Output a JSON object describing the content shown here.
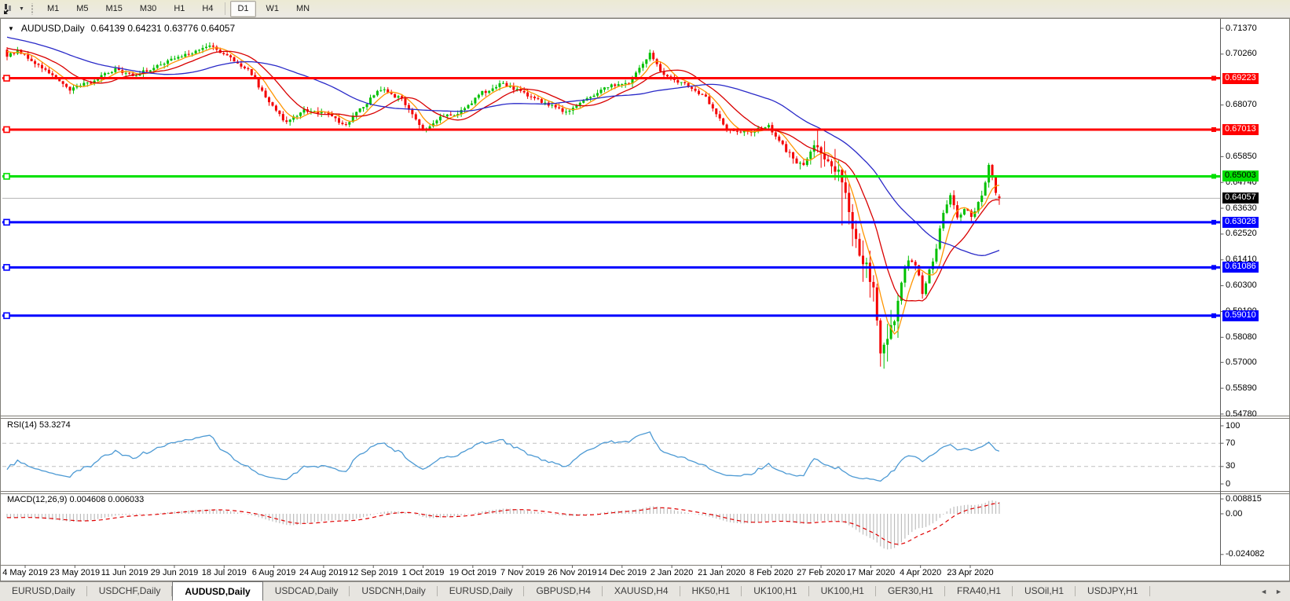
{
  "toolbar": {
    "timeframes": [
      {
        "label": "M1",
        "active": false
      },
      {
        "label": "M5",
        "active": false
      },
      {
        "label": "M15",
        "active": false
      },
      {
        "label": "M30",
        "active": false
      },
      {
        "label": "H1",
        "active": false
      },
      {
        "label": "H4",
        "active": false
      },
      {
        "label": "D1",
        "active": true
      },
      {
        "label": "W1",
        "active": false
      },
      {
        "label": "MN",
        "active": false
      }
    ]
  },
  "icons": {
    "collapse_indicator": "▼",
    "tools_dropdown_caret": "▼",
    "tab_scroll_left": "◄",
    "tab_scroll_right": "►"
  },
  "chart": {
    "title_symbol": "AUDUSD,Daily",
    "title_ohlc": "0.64139 0.64231 0.63776 0.64057",
    "price_axis_ticks": [
      "0.71370",
      "0.70260",
      "0.68070",
      "0.65850",
      "0.64740",
      "0.63630",
      "0.62520",
      "0.61410",
      "0.60300",
      "0.59190",
      "0.58080",
      "0.57000",
      "0.55890",
      "0.54780"
    ],
    "hlines": [
      {
        "label": "0.69223",
        "price": 0.69223,
        "color": "#ff0000",
        "text_color": "#ffffff"
      },
      {
        "label": "0.67013",
        "price": 0.67013,
        "color": "#ff0000",
        "text_color": "#ffffff"
      },
      {
        "label": "0.65003",
        "price": 0.65003,
        "color": "#00e000",
        "text_color": "#000000"
      },
      {
        "label": "0.63028",
        "price": 0.63028,
        "color": "#0000ff",
        "text_color": "#ffffff"
      },
      {
        "label": "0.61086",
        "price": 0.61086,
        "color": "#0000ff",
        "text_color": "#ffffff"
      },
      {
        "label": "0.59010",
        "price": 0.5901,
        "color": "#0000ff",
        "text_color": "#ffffff"
      }
    ],
    "current_price": {
      "label": "0.64057",
      "price": 0.64057,
      "color": "#000000",
      "text_color": "#ffffff"
    }
  },
  "rsi_panel": {
    "label": "RSI(14) 53.3274",
    "axis": [
      {
        "label": "100",
        "value": 100
      },
      {
        "label": "70",
        "value": 70
      },
      {
        "label": "30",
        "value": 30
      },
      {
        "label": "0",
        "value": 0
      }
    ],
    "dashed_levels": [
      70,
      30
    ]
  },
  "macd_panel": {
    "label": "MACD(12,26,9) 0.004608 0.006033",
    "axis": [
      {
        "label": "0.008815",
        "value": 0.008815
      },
      {
        "label": "0.00",
        "value": 0
      },
      {
        "label": "-0.024082",
        "value": -0.024082
      }
    ]
  },
  "time_axis": {
    "labels": [
      "4 May 2019",
      "23 May 2019",
      "11 Jun 2019",
      "29 Jun 2019",
      "18 Jul 2019",
      "6 Aug 2019",
      "24 Aug 2019",
      "12 Sep 2019",
      "1 Oct 2019",
      "19 Oct 2019",
      "7 Nov 2019",
      "26 Nov 2019",
      "14 Dec 2019",
      "2 Jan 2020",
      "21 Jan 2020",
      "8 Feb 2020",
      "27 Feb 2020",
      "17 Mar 2020",
      "4 Apr 2020",
      "23 Apr 2020"
    ]
  },
  "tabs": {
    "active_index": 2,
    "items": [
      "EURUSD,Daily",
      "USDCHF,Daily",
      "AUDUSD,Daily",
      "USDCAD,Daily",
      "USDCNH,Daily",
      "EURUSD,Daily",
      "GBPUSD,H4",
      "XAUUSD,H4",
      "HK50,H1",
      "UK100,H1",
      "UK100,H1",
      "GER30,H1",
      "FRA40,H1",
      "USOil,H1",
      "USDJPY,H1"
    ]
  },
  "chart_data": {
    "type": "candlestick",
    "symbol": "AUDUSD",
    "timeframe": "Daily",
    "last_candle": {
      "open": 0.64139,
      "high": 0.64231,
      "low": 0.63776,
      "close": 0.64057
    },
    "y_axis": {
      "min": 0.5478,
      "max": 0.7137
    },
    "x_range": {
      "start": "1 May 2019",
      "end": "6 May 2020",
      "bars": 285
    },
    "price_path_anchors": [
      [
        0,
        0.702
      ],
      [
        3,
        0.704
      ],
      [
        8,
        0.699
      ],
      [
        14,
        0.692
      ],
      [
        18,
        0.6875
      ],
      [
        24,
        0.6905
      ],
      [
        31,
        0.696
      ],
      [
        37,
        0.6935
      ],
      [
        45,
        0.699
      ],
      [
        53,
        0.7035
      ],
      [
        58,
        0.707
      ],
      [
        63,
        0.7015
      ],
      [
        69,
        0.696
      ],
      [
        75,
        0.6815
      ],
      [
        80,
        0.673
      ],
      [
        85,
        0.6785
      ],
      [
        91,
        0.677
      ],
      [
        97,
        0.672
      ],
      [
        101,
        0.679
      ],
      [
        107,
        0.6875
      ],
      [
        113,
        0.683
      ],
      [
        119,
        0.67
      ],
      [
        124,
        0.675
      ],
      [
        130,
        0.678
      ],
      [
        136,
        0.686
      ],
      [
        142,
        0.69
      ],
      [
        148,
        0.6855
      ],
      [
        154,
        0.681
      ],
      [
        160,
        0.678
      ],
      [
        166,
        0.6835
      ],
      [
        172,
        0.6885
      ],
      [
        178,
        0.6905
      ],
      [
        184,
        0.7025
      ],
      [
        188,
        0.6935
      ],
      [
        194,
        0.6895
      ],
      [
        200,
        0.684
      ],
      [
        206,
        0.67
      ],
      [
        212,
        0.669
      ],
      [
        218,
        0.6715
      ],
      [
        224,
        0.659
      ],
      [
        228,
        0.654
      ],
      [
        231,
        0.6625
      ],
      [
        235,
        0.656
      ],
      [
        238,
        0.652
      ],
      [
        240,
        0.643
      ],
      [
        242,
        0.627
      ],
      [
        244,
        0.616
      ],
      [
        246,
        0.612
      ],
      [
        248,
        0.6
      ],
      [
        250,
        0.5741
      ],
      [
        252,
        0.581
      ],
      [
        254,
        0.59
      ],
      [
        256,
        0.605
      ],
      [
        258,
        0.615
      ],
      [
        260,
        0.613
      ],
      [
        262,
        0.6
      ],
      [
        264,
        0.609
      ],
      [
        266,
        0.62
      ],
      [
        268,
        0.634
      ],
      [
        270,
        0.642
      ],
      [
        272,
        0.633
      ],
      [
        274,
        0.6365
      ],
      [
        276,
        0.633
      ],
      [
        278,
        0.639
      ],
      [
        280,
        0.647
      ],
      [
        281,
        0.655
      ],
      [
        283,
        0.643
      ],
      [
        284,
        0.64057
      ]
    ],
    "special_candles": [
      {
        "index": 239,
        "low_offset": 0.024
      },
      {
        "index": 250,
        "low_offset": 0.018
      }
    ],
    "horizontal_levels": [
      0.69223,
      0.67013,
      0.65003,
      0.63028,
      0.61086,
      0.5901
    ],
    "moving_averages": [
      {
        "name": "fast",
        "period": 6,
        "color": "#ff9500"
      },
      {
        "name": "medium",
        "period": 14,
        "color": "#d90000"
      },
      {
        "name": "slow",
        "period": 40,
        "color": "#2929c8"
      }
    ],
    "rsi": {
      "period": 14,
      "current": 53.3274,
      "levels": [
        30,
        70
      ],
      "color": "#4d9ad4"
    },
    "macd": {
      "fast": 12,
      "slow": 26,
      "signal": 9,
      "main": 0.004608,
      "signal_value": 0.006033,
      "histogram_color": "#bdbdbd",
      "signal_color": "#e00000",
      "axis_max": 0.008815,
      "axis_min": -0.024082
    },
    "candle_colors": {
      "up": "#00c000",
      "down": "#f40000"
    }
  }
}
